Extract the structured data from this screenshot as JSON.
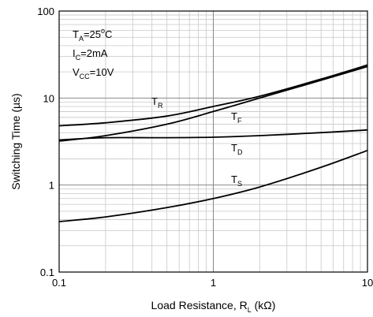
{
  "chart_data": {
    "type": "line",
    "x_scale": "log",
    "y_scale": "log",
    "xlim": [
      0.1,
      10
    ],
    "ylim": [
      0.1,
      100
    ],
    "grid": true,
    "x_ticks": [
      "0.1",
      "1",
      "10"
    ],
    "y_ticks": [
      "0.1",
      "1",
      "10",
      "100"
    ],
    "xlabel": {
      "main": "Load Resistance, R",
      "sub": "L",
      "unit": " (kΩ)"
    },
    "ylabel": "Switching Time (µs)",
    "conditions": [
      {
        "main": "T",
        "sub": "A",
        "rest": "=25",
        "sup": "o",
        "tail": "C"
      },
      {
        "main": "I",
        "sub": "C",
        "rest": "=2mA",
        "sup": "",
        "tail": ""
      },
      {
        "main": "V",
        "sub": "CC",
        "rest": "=10V",
        "sup": "",
        "tail": ""
      }
    ],
    "series": [
      {
        "name": "T_R",
        "label_main": "T",
        "label_sub": "R",
        "points": [
          [
            0.1,
            4.8
          ],
          [
            0.2,
            5.2
          ],
          [
            0.5,
            6.2
          ],
          [
            1,
            8.0
          ],
          [
            2,
            10.5
          ],
          [
            5,
            16.5
          ],
          [
            10,
            24
          ]
        ]
      },
      {
        "name": "T_F",
        "label_main": "T",
        "label_sub": "F",
        "points": [
          [
            0.1,
            3.2
          ],
          [
            0.2,
            3.7
          ],
          [
            0.5,
            5.0
          ],
          [
            1,
            7.0
          ],
          [
            2,
            10.0
          ],
          [
            5,
            16.0
          ],
          [
            10,
            23
          ]
        ]
      },
      {
        "name": "T_D",
        "label_main": "T",
        "label_sub": "D",
        "points": [
          [
            0.1,
            3.3
          ],
          [
            0.2,
            3.5
          ],
          [
            0.5,
            3.5
          ],
          [
            1,
            3.55
          ],
          [
            2,
            3.7
          ],
          [
            5,
            4.0
          ],
          [
            10,
            4.3
          ]
        ]
      },
      {
        "name": "T_S",
        "label_main": "T",
        "label_sub": "S",
        "points": [
          [
            0.1,
            0.38
          ],
          [
            0.2,
            0.43
          ],
          [
            0.5,
            0.55
          ],
          [
            1,
            0.7
          ],
          [
            2,
            0.95
          ],
          [
            5,
            1.6
          ],
          [
            10,
            2.5
          ]
        ]
      }
    ],
    "colors": {
      "line": "#000000",
      "grid": "#888888",
      "frame": "#000000"
    }
  }
}
